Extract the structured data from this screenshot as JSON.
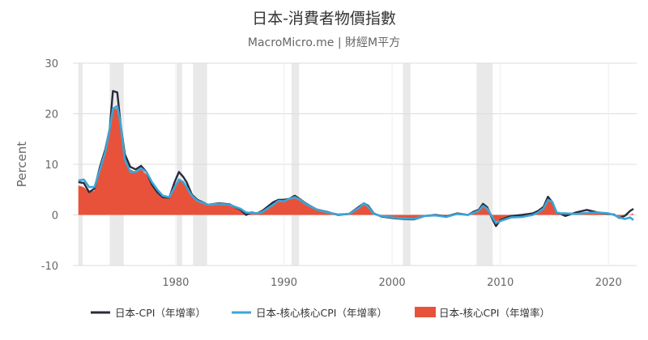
{
  "page": {
    "title": "日本-消費者物價指數",
    "subtitle": "MacroMicro.me | 財經M平方"
  },
  "colors": {
    "cpi": "#2b2b3d",
    "core_line": "#3ba6d8",
    "core_area": "#e8523b",
    "recession": "#e9e9e9",
    "grid": "#dddddd"
  },
  "chart_data": {
    "type": "line",
    "title": "日本-消費者物價指數",
    "subtitle": "MacroMicro.me | 財經M平方",
    "xlabel": "",
    "ylabel": "Percent",
    "xlim": [
      1970.5,
      2022.6
    ],
    "ylim": [
      -10,
      30
    ],
    "x_ticks": [
      1980,
      1990,
      2000,
      2010,
      2020
    ],
    "y_ticks": [
      -10,
      0,
      10,
      20,
      30
    ],
    "grid": true,
    "legend": "bottom",
    "recessions": [
      [
        1971.0,
        1971.4
      ],
      [
        1973.9,
        1975.2
      ],
      [
        1980.1,
        1980.6
      ],
      [
        1981.6,
        1982.9
      ],
      [
        1990.7,
        1991.4
      ],
      [
        2001.0,
        2001.7
      ],
      [
        2007.8,
        2009.3
      ]
    ],
    "series": [
      {
        "name": "日本-CPI（年增率）",
        "kind": "line",
        "color": "#2b2b3d",
        "x": [
          1971.0,
          1971.5,
          1972.0,
          1972.5,
          1973.0,
          1973.5,
          1973.9,
          1974.2,
          1974.6,
          1974.9,
          1975.3,
          1975.8,
          1976.3,
          1976.8,
          1977.3,
          1977.8,
          1978.3,
          1978.8,
          1979.4,
          1979.9,
          1980.3,
          1980.7,
          1981.0,
          1981.5,
          1982.0,
          1982.5,
          1983.0,
          1984.0,
          1985.0,
          1986.0,
          1986.5,
          1987.0,
          1987.5,
          1988.0,
          1989.0,
          1989.5,
          1990.0,
          1990.5,
          1991.0,
          1991.5,
          1992.0,
          1993.0,
          1994.0,
          1995.0,
          1996.0,
          1997.0,
          1997.4,
          1997.8,
          1998.3,
          1999.0,
          2000.0,
          2001.0,
          2002.0,
          2003.0,
          2004.0,
          2005.0,
          2006.0,
          2007.0,
          2007.6,
          2008.0,
          2008.4,
          2008.8,
          2009.2,
          2009.6,
          2010.0,
          2011.0,
          2012.0,
          2013.0,
          2013.5,
          2014.0,
          2014.4,
          2014.8,
          2015.2,
          2015.6,
          2016.0,
          2017.0,
          2018.0,
          2019.0,
          2020.0,
          2020.5,
          2021.0,
          2021.5,
          2022.0,
          2022.3
        ],
        "values": [
          6.5,
          6.3,
          4.5,
          5.2,
          9.5,
          13.0,
          17.0,
          24.5,
          24.2,
          18.0,
          12.0,
          9.5,
          9.0,
          9.7,
          8.5,
          6.0,
          4.5,
          3.5,
          3.4,
          6.5,
          8.5,
          7.5,
          6.5,
          4.0,
          3.0,
          2.5,
          2.0,
          2.3,
          2.1,
          1.0,
          0.0,
          0.5,
          0.3,
          0.8,
          2.5,
          3.0,
          3.0,
          3.2,
          3.8,
          3.1,
          2.3,
          1.1,
          0.6,
          0.0,
          0.2,
          1.7,
          2.3,
          1.8,
          0.3,
          -0.3,
          -0.6,
          -0.8,
          -0.9,
          -0.2,
          0.0,
          -0.3,
          0.3,
          0.0,
          0.7,
          1.0,
          2.2,
          1.5,
          -0.5,
          -2.2,
          -1.0,
          -0.2,
          0.0,
          0.3,
          0.8,
          1.6,
          3.6,
          2.5,
          0.5,
          0.2,
          -0.2,
          0.5,
          1.0,
          0.5,
          0.2,
          0.1,
          -0.6,
          -0.2,
          0.8,
          1.2
        ]
      },
      {
        "name": "日本-核心核心CPI（年增率）",
        "kind": "line",
        "color": "#3ba6d8",
        "x": [
          1971.0,
          1971.5,
          1972.0,
          1972.5,
          1973.0,
          1973.5,
          1973.9,
          1974.2,
          1974.6,
          1974.9,
          1975.3,
          1975.8,
          1976.3,
          1976.8,
          1977.3,
          1977.8,
          1978.3,
          1978.8,
          1979.4,
          1979.9,
          1980.3,
          1980.7,
          1981.0,
          1981.5,
          1982.0,
          1982.5,
          1983.0,
          1984.0,
          1985.0,
          1986.0,
          1986.5,
          1987.0,
          1987.5,
          1988.0,
          1989.0,
          1989.5,
          1990.0,
          1990.5,
          1991.0,
          1991.5,
          1992.0,
          1993.0,
          1994.0,
          1995.0,
          1996.0,
          1997.0,
          1997.4,
          1997.8,
          1998.3,
          1999.0,
          2000.0,
          2001.0,
          2002.0,
          2003.0,
          2004.0,
          2005.0,
          2006.0,
          2007.0,
          2007.6,
          2008.0,
          2008.4,
          2008.8,
          2009.2,
          2009.6,
          2010.0,
          2011.0,
          2012.0,
          2013.0,
          2013.5,
          2014.0,
          2014.4,
          2014.8,
          2015.2,
          2015.6,
          2016.0,
          2017.0,
          2018.0,
          2019.0,
          2020.0,
          2020.5,
          2021.0,
          2021.5,
          2022.0,
          2022.3
        ],
        "values": [
          6.8,
          7.0,
          5.5,
          5.5,
          9.0,
          12.5,
          17.0,
          21.0,
          21.5,
          18.0,
          11.0,
          8.5,
          8.5,
          9.2,
          8.5,
          6.5,
          5.0,
          3.8,
          3.5,
          5.5,
          7.0,
          6.5,
          5.5,
          3.8,
          2.8,
          2.4,
          2.0,
          2.2,
          2.0,
          1.2,
          0.5,
          0.4,
          0.3,
          0.6,
          2.0,
          2.8,
          2.7,
          3.2,
          3.5,
          3.0,
          2.2,
          1.1,
          0.5,
          0.1,
          0.2,
          1.5,
          2.3,
          1.6,
          0.2,
          -0.2,
          -0.5,
          -0.7,
          -0.8,
          -0.2,
          -0.1,
          -0.4,
          0.2,
          0.0,
          0.5,
          0.8,
          1.8,
          1.2,
          -0.2,
          -1.6,
          -1.2,
          -0.5,
          -0.4,
          0.0,
          0.5,
          1.3,
          3.0,
          2.6,
          0.5,
          0.3,
          0.3,
          0.2,
          0.4,
          0.5,
          0.3,
          0.0,
          -0.5,
          -0.8,
          -0.5,
          -1.0
        ]
      },
      {
        "name": "日本-核心CPI（年增率）",
        "kind": "area",
        "color": "#e8523b",
        "x": [
          1971.0,
          1971.5,
          1972.0,
          1972.5,
          1973.0,
          1973.5,
          1973.9,
          1974.2,
          1974.6,
          1974.9,
          1975.3,
          1975.8,
          1976.3,
          1976.8,
          1977.3,
          1977.8,
          1978.3,
          1978.8,
          1979.4,
          1979.9,
          1980.3,
          1980.7,
          1981.0,
          1981.5,
          1982.0,
          1982.5,
          1983.0,
          1984.0,
          1985.0,
          1986.0,
          1986.5,
          1987.0,
          1987.5,
          1988.0,
          1989.0,
          1989.5,
          1990.0,
          1990.5,
          1991.0,
          1991.5,
          1992.0,
          1993.0,
          1994.0,
          1995.0,
          1996.0,
          1997.0,
          1997.4,
          1997.8,
          1998.3,
          1999.0,
          2000.0,
          2001.0,
          2002.0,
          2003.0,
          2004.0,
          2005.0,
          2006.0,
          2007.0,
          2007.6,
          2008.0,
          2008.4,
          2008.8,
          2009.2,
          2009.6,
          2010.0,
          2011.0,
          2012.0,
          2013.0,
          2013.5,
          2014.0,
          2014.4,
          2014.8,
          2015.2,
          2015.6,
          2016.0,
          2017.0,
          2018.0,
          2019.0,
          2020.0,
          2020.5,
          2021.0,
          2021.5,
          2022.0,
          2022.3
        ],
        "values": [
          5.8,
          5.5,
          4.5,
          4.8,
          8.5,
          12.0,
          16.0,
          21.0,
          21.0,
          17.0,
          11.5,
          9.0,
          8.5,
          9.0,
          8.0,
          6.0,
          4.3,
          3.5,
          3.2,
          5.5,
          7.2,
          6.5,
          5.8,
          3.8,
          2.8,
          2.3,
          1.8,
          2.0,
          1.9,
          1.0,
          0.2,
          0.3,
          0.2,
          0.6,
          2.2,
          2.8,
          2.7,
          3.0,
          3.3,
          2.8,
          2.0,
          1.0,
          0.5,
          0.0,
          0.1,
          1.5,
          2.0,
          1.5,
          0.2,
          -0.3,
          -0.5,
          -0.7,
          -0.8,
          -0.3,
          -0.1,
          -0.3,
          0.1,
          -0.1,
          0.3,
          0.6,
          1.6,
          1.0,
          -0.3,
          -1.3,
          -1.0,
          -0.4,
          -0.3,
          0.0,
          0.4,
          1.2,
          3.0,
          2.3,
          0.3,
          0.2,
          0.2,
          0.3,
          0.5,
          0.6,
          0.4,
          0.1,
          -0.4,
          -0.3,
          0.1,
          0.3
        ]
      }
    ]
  }
}
